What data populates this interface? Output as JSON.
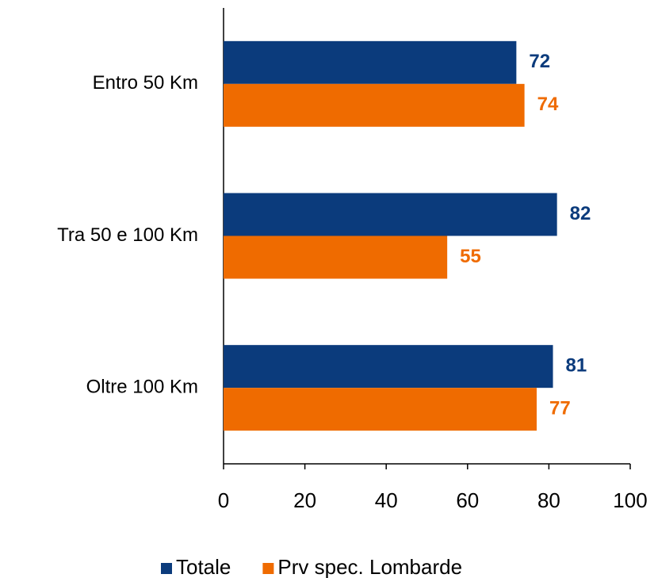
{
  "chart_data": {
    "type": "hbar",
    "categories": [
      "Entro 50 Km",
      "Tra 50 e 100 Km",
      "Oltre 100 Km"
    ],
    "series": [
      {
        "name": "Totale",
        "color": "#0b3b7c",
        "values": [
          72,
          82,
          81
        ]
      },
      {
        "name": "Prv spec. Lombarde",
        "color": "#ef6b00",
        "values": [
          74,
          55,
          77
        ]
      }
    ],
    "xlim": [
      0,
      100
    ],
    "xticks": [
      0,
      20,
      40,
      60,
      80,
      100
    ],
    "grid": false,
    "legend": "bottom"
  }
}
